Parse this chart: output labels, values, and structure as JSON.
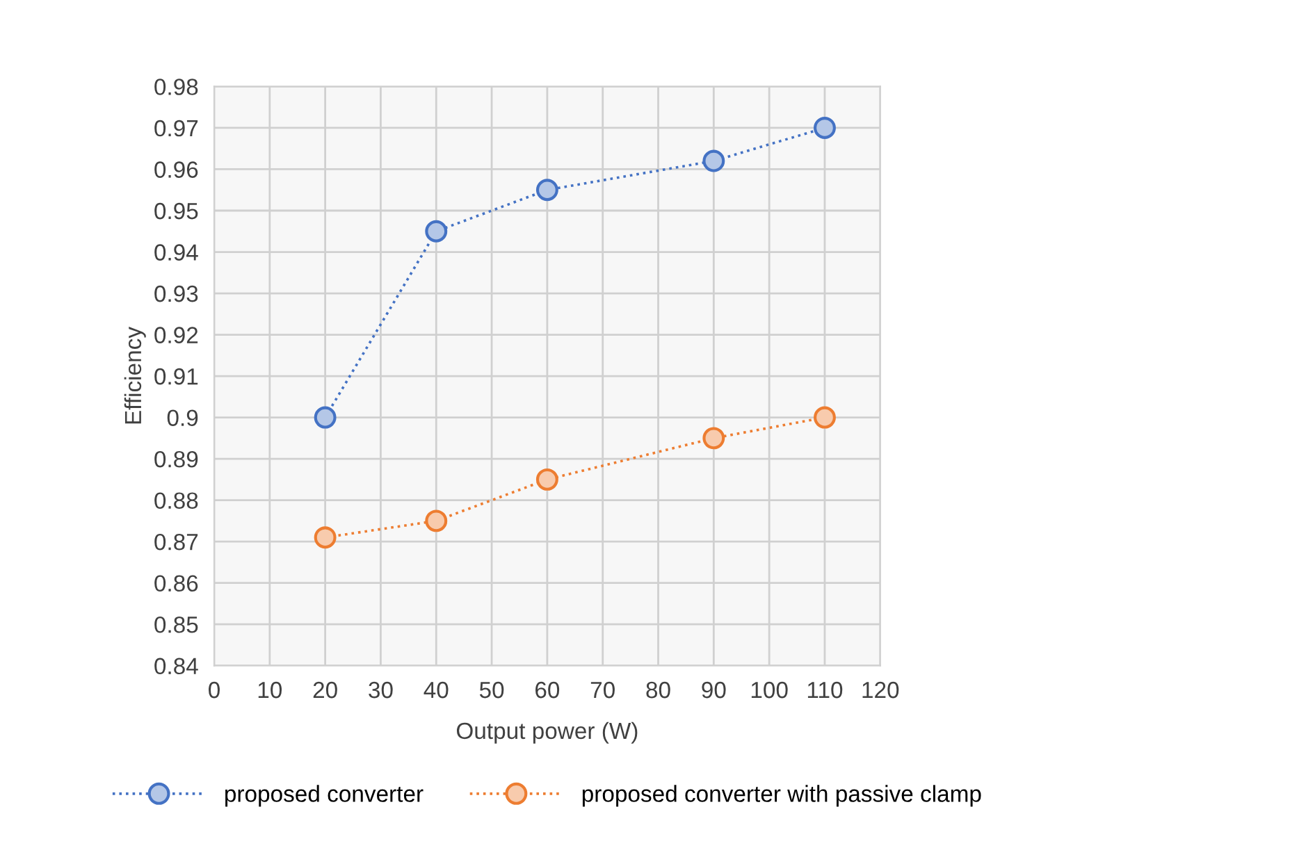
{
  "chart_data": {
    "type": "line",
    "xlabel": "Output power (W)",
    "ylabel": "Efficiency",
    "xlim": [
      0,
      120
    ],
    "xticks": [
      0,
      10,
      20,
      30,
      40,
      50,
      60,
      70,
      80,
      90,
      100,
      110,
      120
    ],
    "ylim": [
      0.84,
      0.98
    ],
    "yticks": [
      0.84,
      0.85,
      0.86,
      0.87,
      0.88,
      0.89,
      0.9,
      0.91,
      0.92,
      0.93,
      0.94,
      0.95,
      0.96,
      0.97,
      0.98
    ],
    "grid": true,
    "legend": "bottom",
    "marker": "circle",
    "line_style": "dotted",
    "series": [
      {
        "name": "proposed converter",
        "color": "#4472c4",
        "x": [
          20,
          40,
          60,
          90,
          110
        ],
        "values": [
          0.9,
          0.945,
          0.955,
          0.962,
          0.97
        ]
      },
      {
        "name": "proposed converter with passive clamp",
        "color": "#ed7d31",
        "x": [
          20,
          40,
          60,
          90,
          110
        ],
        "values": [
          0.871,
          0.875,
          0.885,
          0.895,
          0.9
        ]
      }
    ]
  }
}
